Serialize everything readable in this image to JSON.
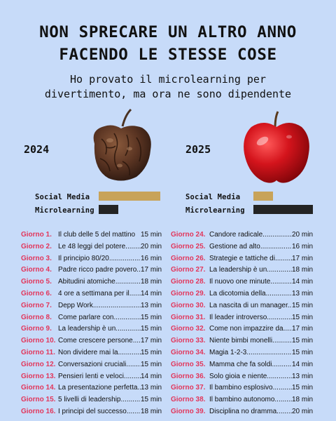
{
  "title_line1": "NON SPRECARE UN ALTRO ANNO",
  "title_line2": "FACENDO LE STESSE COSE",
  "subtitle_line1": "Ho provato il microlearning per",
  "subtitle_line2": "divertimento, ma ora ne sono dipendente",
  "left": {
    "year": "2024",
    "image": "rotten-apple",
    "social_label": "Social Media",
    "micro_label": "Microlearning",
    "social_level": 0.88,
    "micro_level": 0.28
  },
  "right": {
    "year": "2025",
    "image": "fresh-red-apple",
    "social_label": "Social Media",
    "micro_label": "Microlearning",
    "social_level": 0.28,
    "micro_level": 0.85
  },
  "colors": {
    "background": "#c7dbf9",
    "day_label": "#e2365b",
    "social_bar": "#c8a359",
    "micro_bar": "#242424"
  },
  "days_left": [
    {
      "day": "Giorno 1.",
      "desc": "Il club delle 5 del mattino",
      "dur": "15 min"
    },
    {
      "day": "Giorno 2.",
      "desc": "Le 48 leggi del potere..........",
      "dur": "20 min"
    },
    {
      "day": "Giorno 3.",
      "desc": "Il principio 80/20...................",
      "dur": "16 min"
    },
    {
      "day": "Giorno 4.",
      "desc": "Padre ricco padre povero..",
      "dur": "17 min"
    },
    {
      "day": "Giorno 5.",
      "desc": "Abitudini atomiche..................",
      "dur": "18 min"
    },
    {
      "day": "Giorno 6.",
      "desc": "4 ore a settimana per il.......",
      "dur": "14 min"
    },
    {
      "day": "Giorno 7.",
      "desc": "Depp Work............................",
      "dur": "13 min"
    },
    {
      "day": "Giorno 8.",
      "desc": "Come parlare con....................",
      "dur": "15 min"
    },
    {
      "day": "Giorno 9.",
      "desc": "La leadership è un................",
      "dur": "15 min"
    },
    {
      "day": "Giorno 10.",
      "desc": "Come crescere persone........",
      "dur": "17 min"
    },
    {
      "day": "Giorno 11.",
      "desc": "Non dividere mai la..............",
      "dur": "15 min"
    },
    {
      "day": "Giorno 12.",
      "desc": "Conversazioni cruciali...........",
      "dur": "15 min"
    },
    {
      "day": "Giorno 13.",
      "desc": "Pensieri lenti e veloci...........",
      "dur": "14 min"
    },
    {
      "day": "Giorno 14.",
      "desc": "La presentazione perfetta...",
      "dur": "13 min"
    },
    {
      "day": "Giorno 15.",
      "desc": "5 livelli di leadership...........",
      "dur": "15 min"
    },
    {
      "day": "Giorno 16.",
      "desc": "I principi del successo..........",
      "dur": "18 min"
    }
  ],
  "days_right": [
    {
      "day": "Giorno 24.",
      "desc": "Candore radicale......................",
      "dur": "20 min"
    },
    {
      "day": "Giorno 25.",
      "desc": "Gestione ad alto......................",
      "dur": "16 min"
    },
    {
      "day": "Giorno 26.",
      "desc": "Strategie e tattiche di...........",
      "dur": "17 min"
    },
    {
      "day": "Giorno 27.",
      "desc": "La leadership è un...............",
      "dur": "18 min"
    },
    {
      "day": "Giorno 28.",
      "desc": "Il nuovo one minute...............",
      "dur": "14 min"
    },
    {
      "day": "Giorno 29.",
      "desc": "La dicotomia della..................",
      "dur": "13 min"
    },
    {
      "day": "Giorno 30.",
      "desc": "La nascita di un manager....",
      "dur": "15 min"
    },
    {
      "day": "Giorno 31.",
      "desc": "Il leader introverso...............",
      "dur": "15 min"
    },
    {
      "day": "Giorno 32.",
      "desc": "Come non impazzire da........",
      "dur": "17 min"
    },
    {
      "day": "Giorno 33.",
      "desc": "Niente bimbi monelli.............",
      "dur": "15 min"
    },
    {
      "day": "Giorno 34.",
      "desc": "Magia 1-2-3..............................",
      "dur": "15 min"
    },
    {
      "day": "Giorno 35.",
      "desc": "Mamma che fa soldi..............",
      "dur": "14 min"
    },
    {
      "day": "Giorno 36.",
      "desc": "Solo gioia e niente.................",
      "dur": "13 min"
    },
    {
      "day": "Giorno 37.",
      "desc": "Il bambino esplosivo.............",
      "dur": "15 min"
    },
    {
      "day": "Giorno 38.",
      "desc": "Il bambino autonomo.............",
      "dur": "18 min"
    },
    {
      "day": "Giorno 39.",
      "desc": "Disciplina no dramma...........",
      "dur": "20 min"
    }
  ]
}
